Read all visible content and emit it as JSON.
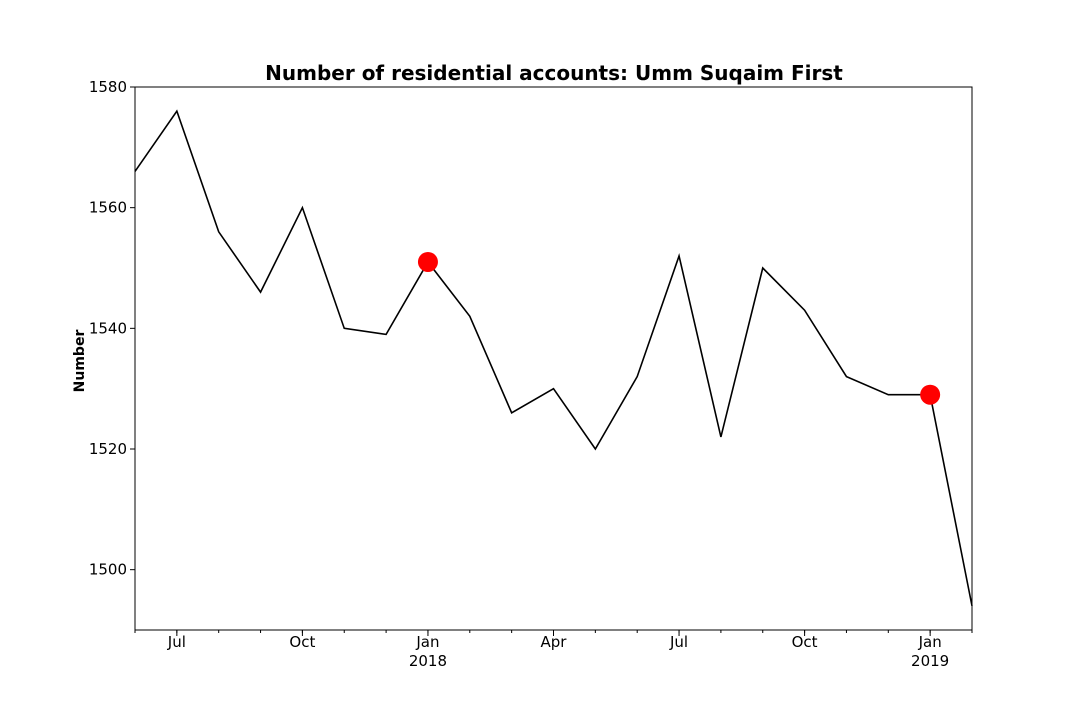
{
  "chart_data": {
    "type": "line",
    "title": "Number of residential accounts: Umm Suqaim First",
    "xlabel": "",
    "ylabel": "Number",
    "ylim": [
      1490,
      1580
    ],
    "xlim": [
      "2017-06",
      "2019-02"
    ],
    "y_ticks": [
      1500,
      1520,
      1540,
      1560,
      1580
    ],
    "x_ticks": [
      {
        "x": "2017-07",
        "label": "Jul",
        "sub": ""
      },
      {
        "x": "2017-10",
        "label": "Oct",
        "sub": ""
      },
      {
        "x": "2018-01",
        "label": "Jan",
        "sub": "2018"
      },
      {
        "x": "2018-04",
        "label": "Apr",
        "sub": ""
      },
      {
        "x": "2018-07",
        "label": "Jul",
        "sub": ""
      },
      {
        "x": "2018-10",
        "label": "Oct",
        "sub": ""
      },
      {
        "x": "2019-01",
        "label": "Jan",
        "sub": "2019"
      }
    ],
    "series": [
      {
        "color": "#000000",
        "x": [
          "2017-06",
          "2017-07",
          "2017-08",
          "2017-09",
          "2017-10",
          "2017-11",
          "2017-12",
          "2018-01",
          "2018-02",
          "2018-03",
          "2018-04",
          "2018-05",
          "2018-06",
          "2018-07",
          "2018-08",
          "2018-09",
          "2018-10",
          "2018-11",
          "2018-12",
          "2019-01",
          "2019-02"
        ],
        "y": [
          1566,
          1576,
          1556,
          1546,
          1560,
          1540,
          1539,
          1551,
          1542,
          1526,
          1530,
          1520,
          1532,
          1552,
          1522,
          1550,
          1543,
          1532,
          1529,
          1529,
          1494
        ]
      }
    ],
    "highlight_points": {
      "color": "#ff0000",
      "x": [
        "2018-01",
        "2019-01"
      ],
      "y": [
        1551,
        1529
      ]
    },
    "grid": false,
    "legend": "none"
  }
}
